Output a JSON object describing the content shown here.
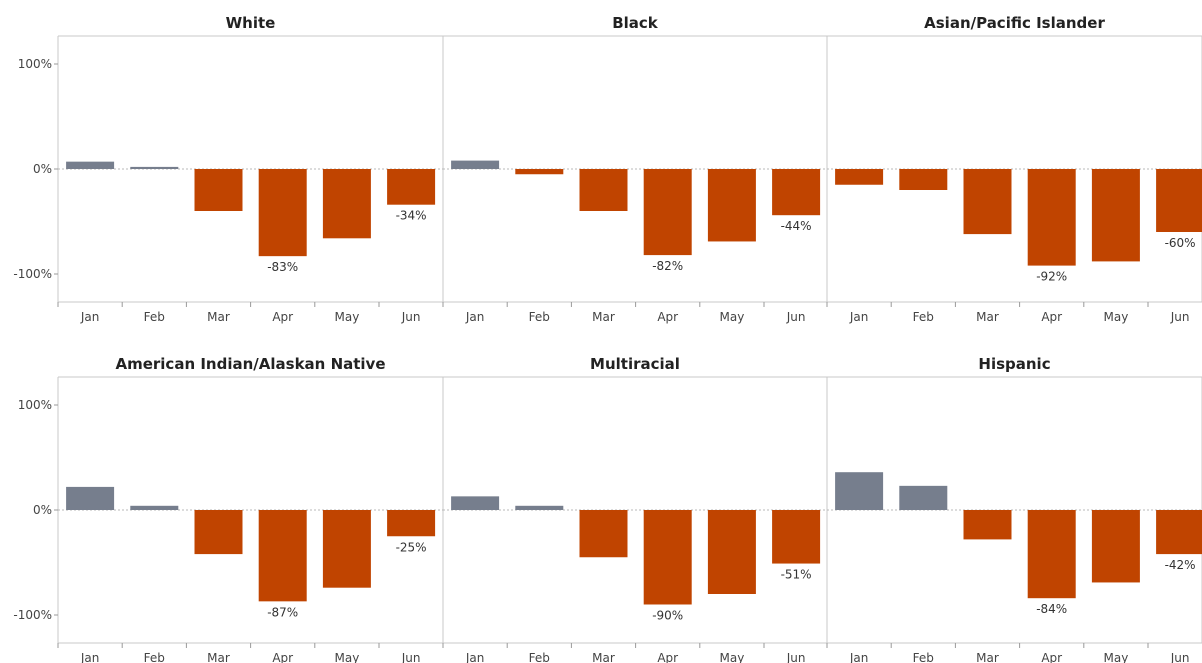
{
  "chart_data": {
    "type": "bar",
    "categories": [
      "Jan",
      "Feb",
      "Mar",
      "Apr",
      "May",
      "Jun"
    ],
    "ylim": [
      -130,
      130
    ],
    "yticks": [
      {
        "value": 100,
        "label": "100%"
      },
      {
        "value": 0,
        "label": "0%"
      },
      {
        "value": -100,
        "label": "-100%"
      }
    ],
    "colors": {
      "positive": "#767e8d",
      "negative": "#c04400"
    },
    "panels": [
      {
        "title": "White",
        "values": [
          7,
          2,
          -40,
          -83,
          -66,
          -34
        ],
        "data_labels": {
          "3": "-83%",
          "5": "-34%"
        }
      },
      {
        "title": "Black",
        "values": [
          8,
          -5,
          -40,
          -82,
          -69,
          -44
        ],
        "data_labels": {
          "3": "-82%",
          "5": "-44%"
        }
      },
      {
        "title": "Asian/Pacific Islander",
        "values": [
          -15,
          -20,
          -62,
          -92,
          -88,
          -60
        ],
        "data_labels": {
          "3": "-92%",
          "5": "-60%"
        }
      },
      {
        "title": "American Indian/Alaskan Native",
        "values": [
          22,
          4,
          -42,
          -87,
          -74,
          -25
        ],
        "data_labels": {
          "3": "-87%",
          "5": "-25%"
        }
      },
      {
        "title": "Multiracial",
        "values": [
          13,
          4,
          -45,
          -90,
          -80,
          -51
        ],
        "data_labels": {
          "3": "-90%",
          "5": "-51%"
        }
      },
      {
        "title": "Hispanic",
        "values": [
          36,
          23,
          -28,
          -84,
          -69,
          -42
        ],
        "data_labels": {
          "3": "-84%",
          "5": "-42%"
        }
      }
    ]
  }
}
